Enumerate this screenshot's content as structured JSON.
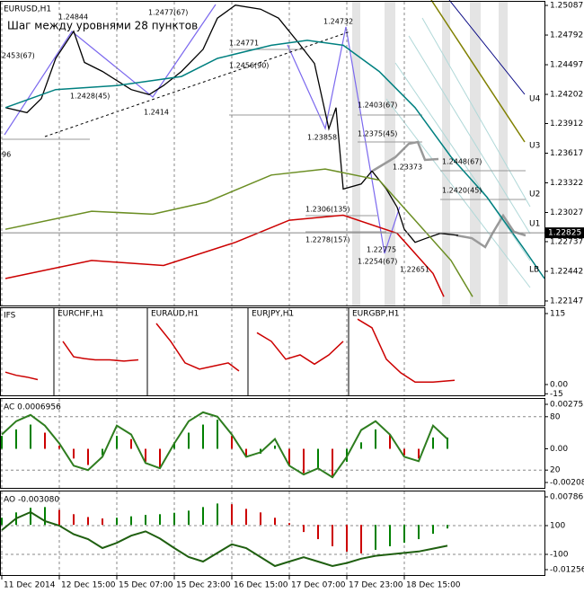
{
  "chart_data": [
    {
      "type": "line",
      "title": "EURUSD,H1",
      "subtitle": "Шаг между уровнями 28 пунктов",
      "xlim": [
        -0.5,
        151
      ],
      "xticks": [
        {
          "value": 0,
          "label": "11 Dec 2014"
        },
        {
          "value": 16,
          "label": "12 Dec 15:00"
        },
        {
          "value": 32,
          "label": "15 Dec 07:00"
        },
        {
          "value": 48,
          "label": "15 Dec 23:00"
        },
        {
          "value": 64,
          "label": "16 Dec 15:00"
        },
        {
          "value": 80,
          "label": "17 Dec 07:00"
        },
        {
          "value": 96,
          "label": "17 Dec 23:00"
        },
        {
          "value": 112,
          "label": "18 Dec 15:00"
        }
      ],
      "ylim": [
        1.22102,
        1.25123
      ],
      "yticks": [
        1.25087,
        1.24792,
        1.24497,
        1.24202,
        1.23912,
        1.23617,
        1.23322,
        1.23027,
        1.22737,
        1.22442,
        1.22147
      ],
      "last_price": 1.22825,
      "series": [
        {
          "color": "#000000",
          "x": [
            1,
            7,
            11,
            15,
            20,
            23,
            28,
            36,
            41,
            45,
            50,
            56,
            60,
            65,
            72,
            77,
            82,
            87,
            91,
            93,
            95,
            100,
            103,
            107,
            110,
            112,
            115,
            118,
            122,
            127
          ],
          "values": [
            1.2407,
            1.2402,
            1.2416,
            1.2456,
            1.2483,
            1.2452,
            1.2443,
            1.2425,
            1.242,
            1.2429,
            1.2443,
            1.2465,
            1.2496,
            1.2509,
            1.2505,
            1.2496,
            1.2474,
            1.2451,
            1.2386,
            1.2407,
            1.2326,
            1.2331,
            1.2344,
            1.2326,
            1.2308,
            1.2286,
            1.2273,
            1.2277,
            1.2282,
            1.228
          ]
        },
        {
          "color": "#008080",
          "x": [
            1,
            15,
            32,
            50,
            60,
            75,
            85,
            95,
            105,
            115,
            125,
            135,
            145,
            151
          ],
          "values": [
            1.2407,
            1.2425,
            1.2429,
            1.2438,
            1.2456,
            1.2469,
            1.2474,
            1.2469,
            1.2443,
            1.2407,
            1.2358,
            1.2318,
            1.2268,
            1.2237
          ]
        },
        {
          "color": "#6b8e23",
          "x": [
            1,
            25,
            42,
            57,
            75,
            90,
            105,
            115,
            125,
            131
          ],
          "values": [
            1.2286,
            1.2304,
            1.2301,
            1.2313,
            1.234,
            1.2346,
            1.2335,
            1.2295,
            1.2255,
            1.2219
          ]
        },
        {
          "color": "#cc0000",
          "x": [
            1,
            25,
            45,
            65,
            80,
            95,
            110,
            120,
            123
          ],
          "values": [
            1.2237,
            1.2255,
            1.225,
            1.2273,
            1.2295,
            1.23,
            1.2282,
            1.2242,
            1.2219
          ]
        }
      ],
      "levels": [
        "U4",
        "U3",
        "U2",
        "U1",
        "LB"
      ],
      "annotations": [
        "1.24844",
        "1.2477(67)",
        "1.24771",
        "1.2456(90)",
        "1.24732",
        "1.2428(45)",
        "1.2414",
        "1.2403(67)",
        "1.23858",
        "1.2375(45)",
        "1.23373",
        "1.2448(67)",
        "1.2420(45)",
        "1.2306(135)",
        "1.2278(157)",
        "1.22775",
        "1.2254(67)",
        "1.22651",
        "2453(67)",
        "96"
      ]
    },
    {
      "type": "line",
      "title": "IFS",
      "ylim": [
        -17.5,
        123.7
      ],
      "yticks": [
        115,
        {
          "value": 0,
          "label": "0.00"
        },
        -15
      ],
      "series": [
        {
          "color": "#cc0000",
          "x": [
            1,
            4,
            7,
            10
          ],
          "values": [
            20,
            15,
            12,
            8
          ]
        },
        {
          "name": "EURCHF,H1",
          "color": "#cc0000",
          "x": [
            17,
            20,
            23,
            26,
            30,
            34,
            38
          ],
          "values": [
            70,
            45,
            42,
            40,
            40,
            38,
            40
          ]
        },
        {
          "name": "EURAUD,H1",
          "color": "#cc0000",
          "x": [
            43,
            47,
            51,
            55,
            59,
            63,
            66
          ],
          "values": [
            99,
            70,
            35,
            25,
            30,
            35,
            22
          ]
        },
        {
          "name": "EURJPY,H1",
          "color": "#cc0000",
          "x": [
            71,
            75,
            79,
            83,
            87,
            91,
            95
          ],
          "values": [
            84,
            70,
            41,
            48,
            33,
            48,
            70
          ]
        },
        {
          "name": "EURGBP,H1",
          "color": "#cc0000",
          "x": [
            99,
            103,
            107,
            111,
            115,
            120,
            126
          ],
          "values": [
            106,
            92,
            41,
            19,
            4,
            4,
            7
          ]
        }
      ]
    },
    {
      "type": "bar",
      "title": "AC 0.0006956",
      "up_color": "#008000",
      "down_color": "#cc0000",
      "ylim": [
        -0.002417,
        0.003087
      ],
      "yticks": [
        0.002753,
        {
          "value": 0,
          "label": "0.00"
        },
        -0.002083
      ],
      "y2lim": [
        0,
        100
      ],
      "y2ticks": [
        80,
        20
      ],
      "x": [
        0,
        4,
        8,
        12,
        16,
        20,
        24,
        28,
        32,
        36,
        40,
        44,
        48,
        52,
        56,
        60,
        64,
        68,
        72,
        76,
        80,
        84,
        88,
        92,
        96,
        100,
        104,
        108,
        112,
        116,
        120,
        124
      ],
      "values": [
        0.0008,
        0.0012,
        0.0015,
        0.001,
        0.0002,
        -0.0006,
        -0.001,
        -0.0004,
        0.0008,
        0.0006,
        -0.0008,
        -0.0012,
        0.0004,
        0.001,
        0.0015,
        0.0018,
        0.0008,
        -0.0005,
        -0.0003,
        0.0002,
        -0.001,
        -0.0015,
        -0.0012,
        -0.0018,
        -0.0008,
        0.0004,
        0.0012,
        0.0009,
        -0.0004,
        -0.0006,
        0.0007,
        0.0007
      ],
      "series": [
        {
          "axis": "y2",
          "color": "#2e7d1f",
          "values": [
            60,
            75,
            82,
            70,
            50,
            25,
            20,
            35,
            70,
            60,
            28,
            22,
            50,
            75,
            85,
            80,
            60,
            35,
            40,
            55,
            25,
            15,
            22,
            12,
            35,
            65,
            75,
            60,
            35,
            30,
            70,
            55
          ]
        }
      ]
    },
    {
      "type": "bar",
      "title": "AO -0.003080",
      "up_color": "#008000",
      "down_color": "#cc0000",
      "ylim": [
        -0.014076,
        0.00938
      ],
      "yticks": [
        0.007867,
        -0.012563
      ],
      "y2lim": [
        -243.75,
        337.5
      ],
      "y2ticks": [
        100,
        -100
      ],
      "x": [
        0,
        4,
        8,
        12,
        16,
        20,
        24,
        28,
        32,
        36,
        40,
        44,
        48,
        52,
        56,
        60,
        64,
        68,
        72,
        76,
        80,
        84,
        88,
        92,
        96,
        100,
        104,
        108,
        112,
        116,
        120,
        124
      ],
      "values": [
        0.002,
        0.0035,
        0.0048,
        0.005,
        0.0042,
        0.003,
        0.0022,
        0.0018,
        0.002,
        0.0024,
        0.0028,
        0.003,
        0.0034,
        0.004,
        0.005,
        0.006,
        0.0058,
        0.0045,
        0.0035,
        0.002,
        0.0005,
        -0.002,
        -0.004,
        -0.006,
        -0.0075,
        -0.008,
        -0.007,
        -0.006,
        -0.005,
        -0.004,
        -0.0025,
        -0.001
      ],
      "series": [
        {
          "axis": "y2",
          "color": "#1f5f10",
          "values": [
            69,
            150,
            194,
            131,
            100,
            40,
            6,
            -56,
            -20,
            30,
            60,
            10,
            -56,
            -119,
            -150,
            -90,
            -30,
            -56,
            -119,
            -181,
            -150,
            -120,
            -150,
            -181,
            -160,
            -130,
            -110,
            -100,
            -90,
            -80,
            -60,
            -40
          ]
        }
      ]
    }
  ]
}
